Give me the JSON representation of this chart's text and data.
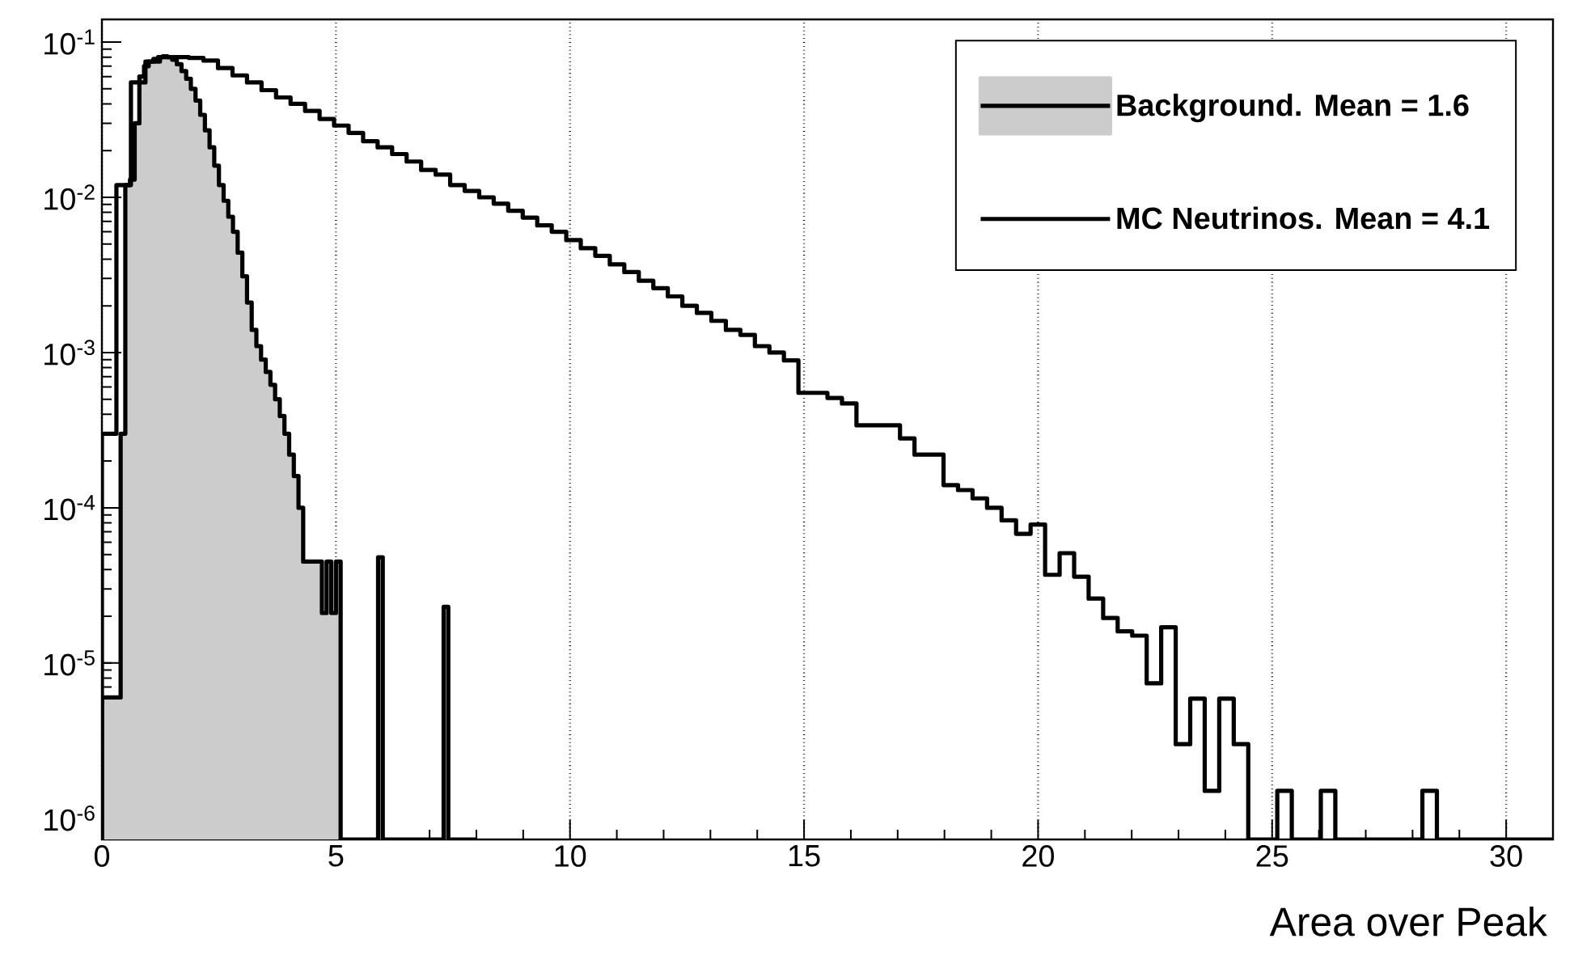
{
  "chart_data": {
    "type": "histogram",
    "xlabel": "Area over Peak",
    "log": "y",
    "grid": "x",
    "legend": "top right",
    "xlim": [
      0,
      31
    ],
    "xticks": [
      0,
      5,
      10,
      15,
      20,
      25,
      30
    ],
    "ylim": [
      7.3e-07,
      0.14
    ],
    "yticks": [
      {
        "value": 1e-06,
        "label": "10$^{-6}$"
      },
      {
        "value": 1e-05,
        "label": "10$^{-5}$"
      },
      {
        "value": 0.0001,
        "label": "10$^{-4}$"
      },
      {
        "value": 0.001,
        "label": "10$^{-3}$"
      },
      {
        "value": 0.01,
        "label": "10$^{-2}$"
      },
      {
        "value": 0.1,
        "label": "10$^{-1}$"
      }
    ],
    "series": [
      {
        "name": "Background. Mean = 1.6",
        "color": "#cccccc",
        "bins": [
          0,
          0.1,
          0.2,
          0.3,
          0.4,
          0.5,
          0.6,
          0.7,
          0.8,
          0.9,
          1.0,
          1.1,
          1.2,
          1.3,
          1.4,
          1.5,
          1.6,
          1.7,
          1.8,
          1.9,
          2.0,
          2.1,
          2.2,
          2.3,
          2.4,
          2.5,
          2.6,
          2.7,
          2.8,
          2.9,
          3.0,
          3.1,
          3.2,
          3.3,
          3.4,
          3.5,
          3.6,
          3.7,
          3.8,
          3.9,
          4.0,
          4.1,
          4.2,
          4.3,
          4.4,
          4.5,
          4.6,
          4.7,
          4.8,
          4.9,
          5.0,
          5.1,
          5.2,
          5.3,
          5.4,
          5.5,
          5.6,
          5.7,
          5.8,
          5.9,
          6.0,
          6.1,
          6.2,
          6.3,
          6.4,
          6.5,
          6.6,
          6.7,
          6.8,
          6.9,
          7.0,
          7.1,
          7.2,
          7.3,
          7.4,
          7.5,
          7.6,
          7.7,
          7.8,
          7.9,
          8.0
        ],
        "values": [
          6e-06,
          6e-06,
          6e-06,
          6e-06,
          0.0003,
          0.012,
          0.013,
          0.03,
          0.06,
          0.07,
          0.075,
          0.078,
          0.08,
          0.081,
          0.08,
          0.077,
          0.072,
          0.065,
          0.058,
          0.05,
          0.042,
          0.034,
          0.027,
          0.021,
          0.016,
          0.012,
          0.0095,
          0.0075,
          0.006,
          0.0044,
          0.0031,
          0.0021,
          0.0014,
          0.0011,
          0.0009,
          0.00075,
          0.00062,
          0.0005,
          0.00039,
          0.0003,
          0.00022,
          0.00016,
          0.0001,
          4.5e-05,
          4.5e-05,
          4.5e-05,
          4.5e-05,
          2.1e-05,
          4.5e-05,
          2.1e-05,
          4.5e-05,
          null,
          null,
          null,
          null,
          null,
          null,
          null,
          null,
          4.8e-05,
          null,
          null,
          null,
          null,
          null,
          null,
          null,
          null,
          null,
          null,
          null,
          null,
          null,
          2.3e-05,
          null,
          null,
          null,
          null,
          null,
          null
        ]
      },
      {
        "name": "MC Neutrinos. Mean = 4.1",
        "color": "#000000",
        "values": [
          0.0003,
          0.012,
          0.055,
          0.075,
          0.08,
          0.08,
          0.079,
          0.076,
          0.068,
          0.061,
          0.055,
          0.049,
          0.044,
          0.04,
          0.036,
          0.032,
          0.029,
          0.026,
          0.023,
          0.021,
          0.019,
          0.017,
          0.015,
          0.014,
          0.012,
          0.011,
          0.01,
          0.0091,
          0.0082,
          0.0074,
          0.0066,
          0.006,
          0.0053,
          0.0047,
          0.0042,
          0.0037,
          0.0033,
          0.0029,
          0.0026,
          0.0023,
          0.002,
          0.0018,
          0.0016,
          0.0014,
          0.0013,
          0.0011,
          0.001,
          0.00089,
          0.00055,
          0.00055,
          0.00051,
          0.00047,
          0.00034,
          0.00034,
          0.00034,
          0.00028,
          0.00022,
          0.00022,
          0.00014,
          0.00013,
          0.000115,
          0.0001,
          8.3e-05,
          6.8e-05,
          7.8e-05,
          3.7e-05,
          5.1e-05,
          3.6e-05,
          2.6e-05,
          1.95e-05,
          1.6e-05,
          1.5e-05,
          7.4e-06,
          1.7e-05,
          3e-06,
          5.9e-06,
          1.5e-06,
          5.9e-06,
          3e-06,
          null,
          null,
          1.5e-06,
          null,
          null,
          1.5e-06,
          null,
          null,
          null,
          null,
          null,
          null,
          1.5e-06,
          null,
          null,
          null,
          null,
          null,
          null,
          null,
          null
        ]
      }
    ],
    "bins": [
      0,
      0.31,
      0.62,
      0.93,
      1.24,
      1.55,
      1.86,
      2.17,
      2.48,
      2.79,
      3.1,
      3.41,
      3.72,
      4.03,
      4.34,
      4.65,
      4.96,
      5.27,
      5.58,
      5.89,
      6.2,
      6.51,
      6.82,
      7.13,
      7.44,
      7.75,
      8.06,
      8.37,
      8.68,
      8.99,
      9.3,
      9.61,
      9.92,
      10.23,
      10.54,
      10.85,
      11.16,
      11.47,
      11.78,
      12.09,
      12.4,
      12.71,
      13.02,
      13.33,
      13.64,
      13.95,
      14.26,
      14.57,
      14.88,
      15.19,
      15.5,
      15.81,
      16.12,
      16.43,
      16.74,
      17.05,
      17.36,
      17.67,
      17.98,
      18.29,
      18.6,
      18.91,
      19.22,
      19.53,
      19.84,
      20.15,
      20.46,
      20.77,
      21.08,
      21.39,
      21.7,
      22.01,
      22.32,
      22.63,
      22.94,
      23.25,
      23.56,
      23.87,
      24.18,
      24.49,
      24.8,
      25.11,
      25.42,
      25.73,
      26.04,
      26.35,
      26.66,
      26.97,
      27.28,
      27.59,
      27.9,
      28.21,
      28.52,
      28.83,
      29.14,
      29.45,
      29.76,
      30.07,
      30.38,
      30.69,
      31.0
    ]
  }
}
